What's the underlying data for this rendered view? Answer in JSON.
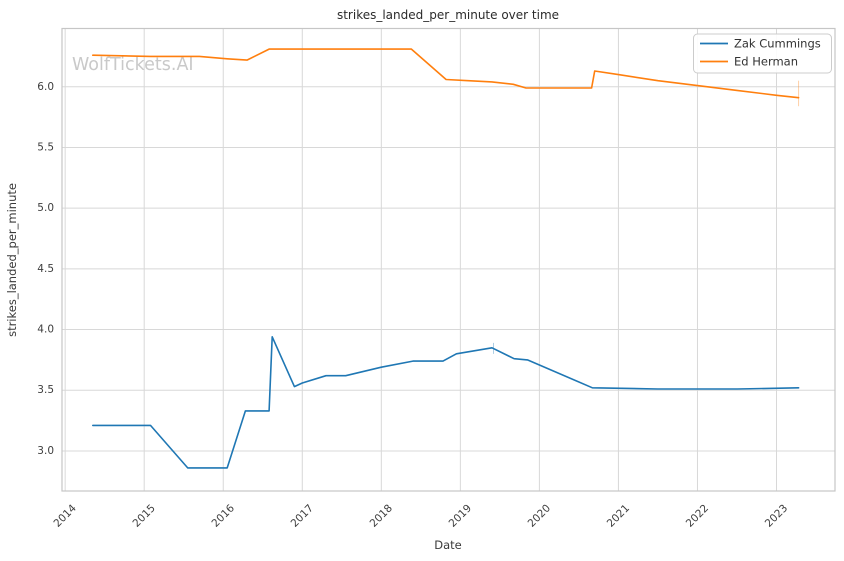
{
  "watermark": {
    "text": "WolfTickets.AI",
    "color": "#c9c9c9"
  },
  "colors": {
    "background": "#ffffff",
    "grid": "#d8d8d8",
    "spine": "#c6c6c6",
    "title_text": "#2b2b2b",
    "tick_text": "#3d3d3d"
  },
  "legend": {
    "position": "upper right",
    "entries": [
      {
        "label": "Zak Cummings",
        "color": "#1f77b4"
      },
      {
        "label": "Ed Herman",
        "color": "#ff7f0e"
      }
    ]
  },
  "chart_data": {
    "type": "line",
    "title": "strikes_landed_per_minute over time",
    "xlabel": "Date",
    "ylabel": "strikes_landed_per_minute",
    "xlim": [
      2013.96,
      2023.74
    ],
    "ylim": [
      2.67,
      6.48
    ],
    "xticks": [
      2014,
      2015,
      2016,
      2017,
      2018,
      2019,
      2020,
      2021,
      2022,
      2023
    ],
    "yticks": [
      3.0,
      3.5,
      4.0,
      4.5,
      5.0,
      5.5,
      6.0
    ],
    "grid": true,
    "legend_position": "upper right",
    "series": [
      {
        "name": "Zak Cummings",
        "color": "#1f77b4",
        "points": [
          [
            2014.35,
            3.21
          ],
          [
            2015.08,
            3.21
          ],
          [
            2015.55,
            2.86
          ],
          [
            2016.05,
            2.86
          ],
          [
            2016.28,
            3.33
          ],
          [
            2016.58,
            3.33
          ],
          [
            2016.62,
            3.94
          ],
          [
            2016.9,
            3.53
          ],
          [
            2017.0,
            3.56
          ],
          [
            2017.3,
            3.62
          ],
          [
            2017.55,
            3.62
          ],
          [
            2018.0,
            3.69
          ],
          [
            2018.4,
            3.74
          ],
          [
            2018.78,
            3.74
          ],
          [
            2018.95,
            3.8
          ],
          [
            2019.4,
            3.85
          ],
          [
            2019.68,
            3.76
          ],
          [
            2019.85,
            3.75
          ],
          [
            2020.67,
            3.52
          ],
          [
            2021.5,
            3.51
          ],
          [
            2022.5,
            3.51
          ],
          [
            2023.28,
            3.52
          ]
        ],
        "vertical_tick": {
          "x": 2019.42,
          "y1": 3.8,
          "y2": 3.89
        }
      },
      {
        "name": "Ed Herman",
        "color": "#ff7f0e",
        "points": [
          [
            2014.35,
            6.26
          ],
          [
            2015.08,
            6.25
          ],
          [
            2015.7,
            6.25
          ],
          [
            2016.05,
            6.23
          ],
          [
            2016.3,
            6.22
          ],
          [
            2016.58,
            6.31
          ],
          [
            2018.38,
            6.31
          ],
          [
            2018.82,
            6.06
          ],
          [
            2019.1,
            6.05
          ],
          [
            2019.4,
            6.04
          ],
          [
            2019.67,
            6.02
          ],
          [
            2019.83,
            5.99
          ],
          [
            2020.66,
            5.99
          ],
          [
            2020.7,
            6.13
          ],
          [
            2021.0,
            6.1
          ],
          [
            2021.5,
            6.05
          ],
          [
            2022.0,
            6.01
          ],
          [
            2022.5,
            5.97
          ],
          [
            2023.0,
            5.93
          ],
          [
            2023.28,
            5.91
          ]
        ],
        "vertical_tick": {
          "x": 2023.28,
          "y1": 5.84,
          "y2": 6.05
        }
      }
    ]
  }
}
